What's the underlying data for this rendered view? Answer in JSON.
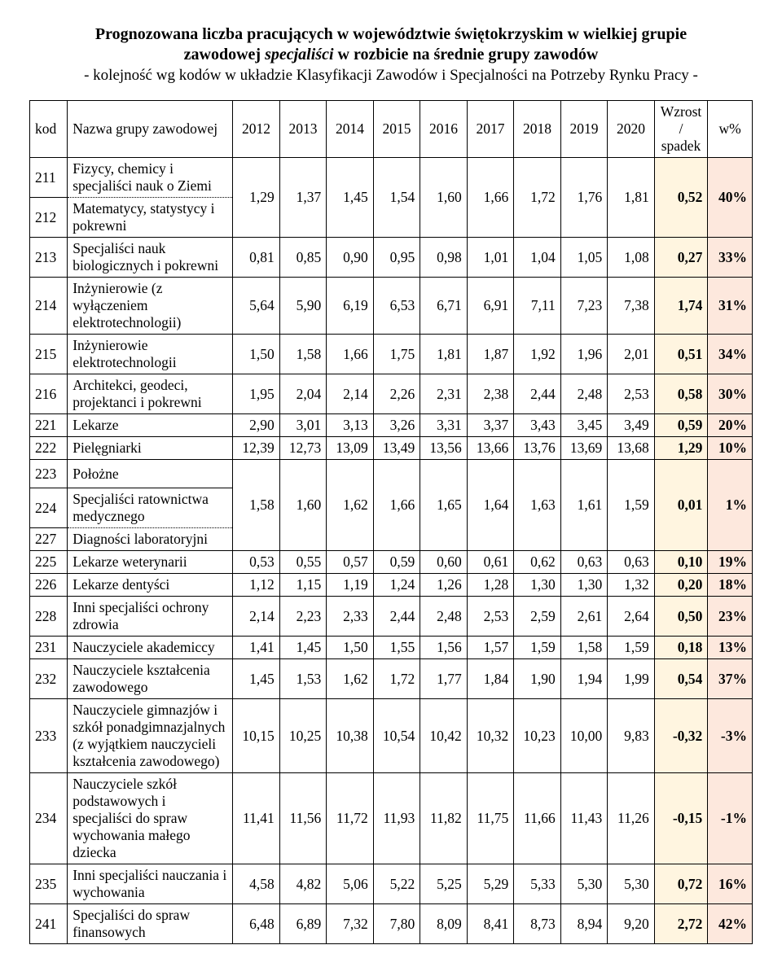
{
  "colors": {
    "lightYellow": "#fff5e0",
    "lightPink": "#fde8dd"
  },
  "title": {
    "line1_a": "Prognozowana liczba pracujących w województwie świętokrzyskim w wielkiej grupie",
    "line2_a": "zawodowej ",
    "line2_italic": "specjaliści",
    "line2_b": " w rozbicie na średnie grupy zawodów",
    "line3": "- kolejność wg kodów w układzie Klasyfikacji Zawodów i Specjalności na Potrzeby Rynku Pracy -"
  },
  "headers": {
    "kod": "kod",
    "name": "Nazwa grupy zawodowej",
    "y2012": "2012",
    "y2013": "2013",
    "y2014": "2014",
    "y2015": "2015",
    "y2016": "2016",
    "y2017": "2017",
    "y2018": "2018",
    "y2019": "2019",
    "y2020": "2020",
    "wzrost": "Wzrost / spadek",
    "wpct": "w%"
  },
  "rows": {
    "r211": {
      "kod": "211",
      "name": "Fizycy, chemicy i specjaliści nauk o Ziemi"
    },
    "r212": {
      "kod": "212",
      "name": "Matematycy, statystycy i pokrewni",
      "v": [
        "1,29",
        "1,37",
        "1,45",
        "1,54",
        "1,60",
        "1,66",
        "1,72",
        "1,76",
        "1,81"
      ],
      "wz": "0,52",
      "wp": "40%"
    },
    "r213": {
      "kod": "213",
      "name": "Specjaliści nauk biologicznych i pokrewni",
      "v": [
        "0,81",
        "0,85",
        "0,90",
        "0,95",
        "0,98",
        "1,01",
        "1,04",
        "1,05",
        "1,08"
      ],
      "wz": "0,27",
      "wp": "33%"
    },
    "r214": {
      "kod": "214",
      "name": "Inżynierowie (z wyłączeniem elektrotechnologii)",
      "v": [
        "5,64",
        "5,90",
        "6,19",
        "6,53",
        "6,71",
        "6,91",
        "7,11",
        "7,23",
        "7,38"
      ],
      "wz": "1,74",
      "wp": "31%"
    },
    "r215": {
      "kod": "215",
      "name": "Inżynierowie elektrotechnologii",
      "v": [
        "1,50",
        "1,58",
        "1,66",
        "1,75",
        "1,81",
        "1,87",
        "1,92",
        "1,96",
        "2,01"
      ],
      "wz": "0,51",
      "wp": "34%"
    },
    "r216": {
      "kod": "216",
      "name": "Architekci, geodeci, projektanci i pokrewni",
      "v": [
        "1,95",
        "2,04",
        "2,14",
        "2,26",
        "2,31",
        "2,38",
        "2,44",
        "2,48",
        "2,53"
      ],
      "wz": "0,58",
      "wp": "30%"
    },
    "r221": {
      "kod": "221",
      "name": "Lekarze",
      "v": [
        "2,90",
        "3,01",
        "3,13",
        "3,26",
        "3,31",
        "3,37",
        "3,43",
        "3,45",
        "3,49"
      ],
      "wz": "0,59",
      "wp": "20%"
    },
    "r222": {
      "kod": "222",
      "name": "Pielęgniarki",
      "v": [
        "12,39",
        "12,73",
        "13,09",
        "13,49",
        "13,56",
        "13,66",
        "13,76",
        "13,69",
        "13,68"
      ],
      "wz": "1,29",
      "wp": "10%"
    },
    "r223": {
      "kod": "223",
      "name": "Położne"
    },
    "r224": {
      "kod": "224",
      "name": "Specjaliści ratownictwa medycznego",
      "v": [
        "1,58",
        "1,60",
        "1,62",
        "1,66",
        "1,65",
        "1,64",
        "1,63",
        "1,61",
        "1,59"
      ],
      "wz": "0,01",
      "wp": "1%"
    },
    "r227": {
      "kod": "227",
      "name": "Diagności laboratoryjni"
    },
    "r225": {
      "kod": "225",
      "name": "Lekarze weterynarii",
      "v": [
        "0,53",
        "0,55",
        "0,57",
        "0,59",
        "0,60",
        "0,61",
        "0,62",
        "0,63",
        "0,63"
      ],
      "wz": "0,10",
      "wp": "19%"
    },
    "r226": {
      "kod": "226",
      "name": "Lekarze dentyści",
      "v": [
        "1,12",
        "1,15",
        "1,19",
        "1,24",
        "1,26",
        "1,28",
        "1,30",
        "1,30",
        "1,32"
      ],
      "wz": "0,20",
      "wp": "18%"
    },
    "r228": {
      "kod": "228",
      "name": "Inni specjaliści ochrony zdrowia",
      "v": [
        "2,14",
        "2,23",
        "2,33",
        "2,44",
        "2,48",
        "2,53",
        "2,59",
        "2,61",
        "2,64"
      ],
      "wz": "0,50",
      "wp": "23%"
    },
    "r231": {
      "kod": "231",
      "name": "Nauczyciele akademiccy",
      "v": [
        "1,41",
        "1,45",
        "1,50",
        "1,55",
        "1,56",
        "1,57",
        "1,59",
        "1,58",
        "1,59"
      ],
      "wz": "0,18",
      "wp": "13%"
    },
    "r232": {
      "kod": "232",
      "name": "Nauczyciele kształcenia zawodowego",
      "v": [
        "1,45",
        "1,53",
        "1,62",
        "1,72",
        "1,77",
        "1,84",
        "1,90",
        "1,94",
        "1,99"
      ],
      "wz": "0,54",
      "wp": "37%"
    },
    "r233": {
      "kod": "233",
      "name": "Nauczyciele gimnazjów i szkół ponadgimnazjalnych (z wyjątkiem nauczycieli kształcenia zawodowego)",
      "v": [
        "10,15",
        "10,25",
        "10,38",
        "10,54",
        "10,42",
        "10,32",
        "10,23",
        "10,00",
        "9,83"
      ],
      "wz": "-0,32",
      "wp": "-3%"
    },
    "r234": {
      "kod": "234",
      "name": "Nauczyciele szkół podstawowych i specjaliści do spraw wychowania małego dziecka",
      "v": [
        "11,41",
        "11,56",
        "11,72",
        "11,93",
        "11,82",
        "11,75",
        "11,66",
        "11,43",
        "11,26"
      ],
      "wz": "-0,15",
      "wp": "-1%"
    },
    "r235": {
      "kod": "235",
      "name": "Inni specjaliści nauczania i wychowania",
      "v": [
        "4,58",
        "4,82",
        "5,06",
        "5,22",
        "5,25",
        "5,29",
        "5,33",
        "5,30",
        "5,30"
      ],
      "wz": "0,72",
      "wp": "16%"
    },
    "r241": {
      "kod": "241",
      "name": "Specjaliści do spraw finansowych",
      "v": [
        "6,48",
        "6,89",
        "7,32",
        "7,80",
        "8,09",
        "8,41",
        "8,73",
        "8,94",
        "9,20"
      ],
      "wz": "2,72",
      "wp": "42%"
    }
  }
}
